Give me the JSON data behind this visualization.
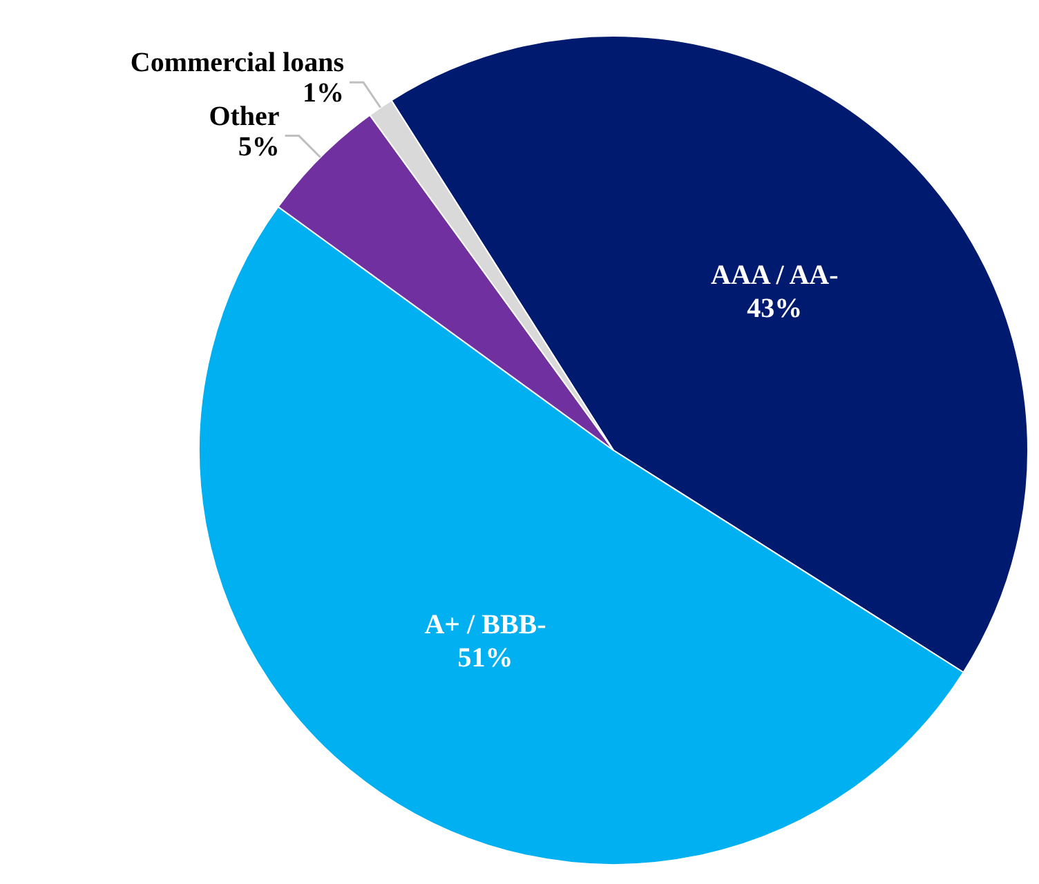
{
  "chart_data": {
    "type": "pie",
    "categories": [
      "AAA / AA-",
      "A+ / BBB-",
      "Other",
      "Commercial loans"
    ],
    "values": [
      43,
      51,
      5,
      1
    ],
    "colors": [
      "#001a70",
      "#00b0f0",
      "#7030a0",
      "#d9d9d9"
    ],
    "value_labels": [
      "43%",
      "51%",
      "5%",
      "1%"
    ]
  }
}
